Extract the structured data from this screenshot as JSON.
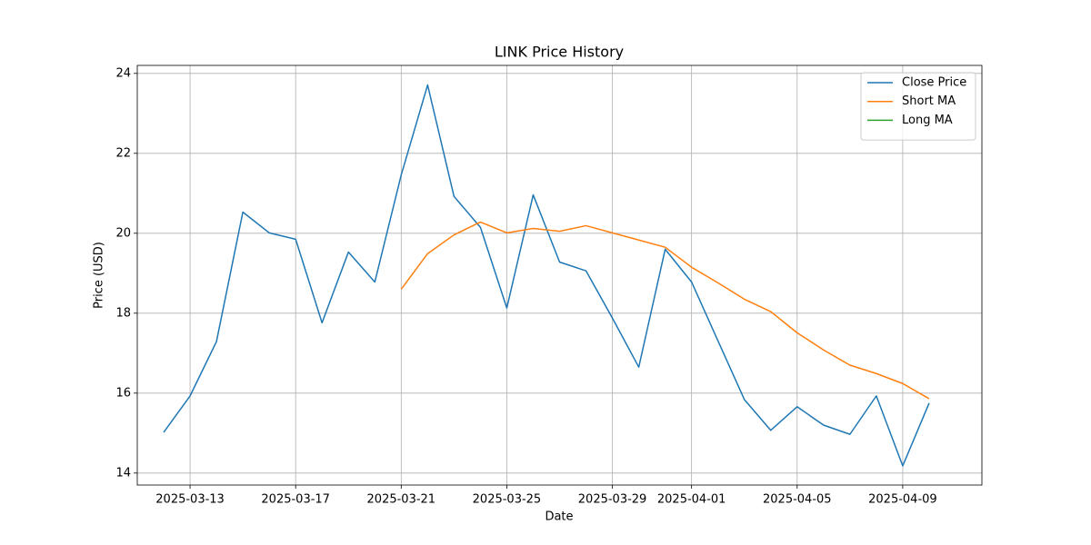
{
  "chart_data": {
    "type": "line",
    "title": "LINK Price History",
    "x_label": "Date",
    "y_label": "Price (USD)",
    "x": [
      "2025-03-12",
      "2025-03-13",
      "2025-03-14",
      "2025-03-15",
      "2025-03-16",
      "2025-03-17",
      "2025-03-18",
      "2025-03-19",
      "2025-03-20",
      "2025-03-21",
      "2025-03-22",
      "2025-03-23",
      "2025-03-24",
      "2025-03-25",
      "2025-03-26",
      "2025-03-27",
      "2025-03-28",
      "2025-03-29",
      "2025-03-30",
      "2025-03-31",
      "2025-04-01",
      "2025-04-02",
      "2025-04-03",
      "2025-04-04",
      "2025-04-05",
      "2025-04-06",
      "2025-04-07",
      "2025-04-08",
      "2025-04-09",
      "2025-04-10"
    ],
    "series": [
      {
        "name": "Close Price",
        "color": "#1f77b4",
        "values": [
          15.02,
          15.93,
          17.29,
          20.53,
          20.01,
          19.85,
          17.76,
          19.53,
          18.78,
          21.46,
          23.71,
          20.92,
          20.15,
          18.13,
          20.96,
          19.28,
          19.06,
          17.88,
          16.65,
          19.6,
          18.78,
          17.31,
          15.84,
          15.07,
          15.66,
          15.2,
          14.97,
          15.93,
          14.18,
          15.75
        ]
      },
      {
        "name": "Short MA",
        "color": "#ff7f0e",
        "values": [
          null,
          null,
          null,
          null,
          null,
          null,
          null,
          null,
          null,
          18.6,
          19.49,
          19.96,
          20.28,
          20.01,
          20.12,
          20.05,
          20.19,
          20.01,
          19.83,
          19.65,
          19.15,
          18.76,
          18.35,
          18.04,
          17.51,
          17.08,
          16.7,
          16.49,
          16.24,
          15.86
        ]
      },
      {
        "name": "Long MA",
        "color": "#2ca02c",
        "values": [
          null,
          null,
          null,
          null,
          null,
          null,
          null,
          null,
          null,
          null,
          null,
          null,
          null,
          null,
          null,
          null,
          null,
          null,
          null,
          null,
          null,
          null,
          null,
          null,
          null,
          null,
          null,
          null,
          null,
          null
        ]
      }
    ],
    "xlim": [
      "2025-03-11",
      "2025-04-12"
    ],
    "xticks": [
      "2025-03-13",
      "2025-03-17",
      "2025-03-21",
      "2025-03-25",
      "2025-03-29",
      "2025-04-01",
      "2025-04-05",
      "2025-04-09"
    ],
    "ylim": [
      13.7,
      24.2
    ],
    "yticks": [
      14,
      16,
      18,
      20,
      22,
      24
    ],
    "grid": true,
    "legend": "upper right"
  }
}
